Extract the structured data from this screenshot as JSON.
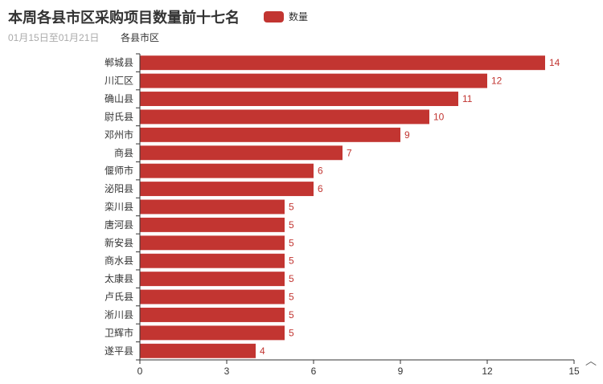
{
  "colors": {
    "bar": "#c23531",
    "axis": "#333333",
    "text": "#333333"
  },
  "chart_data": {
    "type": "bar",
    "orientation": "horizontal",
    "title": "本周各县市区采购项目数量前十七名",
    "subtitle": "01月15日至01月21日",
    "ylabel": "各县市区",
    "xlabel": "",
    "xlim": [
      0,
      15
    ],
    "xticks": [
      "0",
      "3",
      "6",
      "9",
      "12",
      "15"
    ],
    "categories": [
      "郸城县",
      "川汇区",
      "确山县",
      "尉氏县",
      "邓州市",
      "商县",
      "偃师市",
      "泌阳县",
      "栾川县",
      "唐河县",
      "新安县",
      "商水县",
      "太康县",
      "卢氏县",
      "淅川县",
      "卫辉市",
      "遂平县"
    ],
    "series": [
      {
        "name": "数量",
        "values": [
          14,
          12,
          11,
          10,
          9,
          7,
          6,
          6,
          5,
          5,
          5,
          5,
          5,
          5,
          5,
          5,
          4
        ]
      }
    ],
    "legend": "top-center",
    "grid": false,
    "toolbox_glyph": "︿"
  }
}
